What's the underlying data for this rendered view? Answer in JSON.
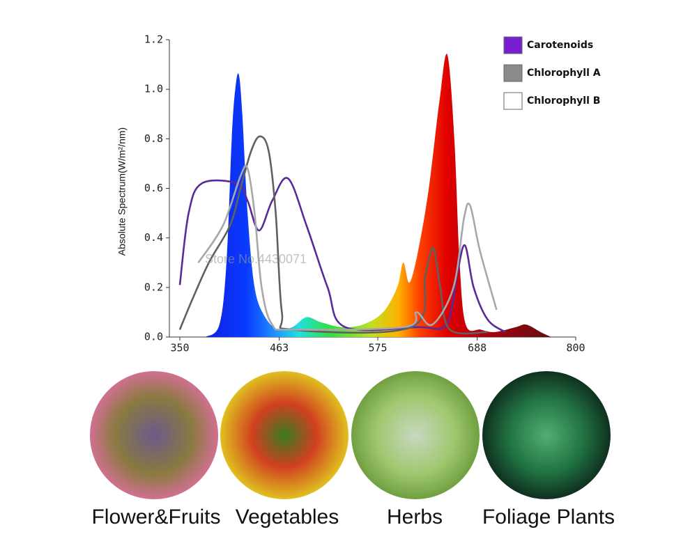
{
  "chart_data": {
    "type": "line",
    "y_label": "Absolute Spectrum(W/m²/nm)",
    "watermark": "Store No.4430071",
    "xlim": [
      350,
      800
    ],
    "xticks": [
      350,
      463,
      575,
      688,
      800
    ],
    "ylim": [
      0,
      1.2
    ],
    "yticks": [
      {
        "value": 0,
        "label": "0.0"
      },
      0.2,
      0.4,
      0.6,
      0.8,
      {
        "value": 1,
        "label": "1.0"
      },
      1.2
    ],
    "spectrum": {
      "x": [
        379,
        395,
        403,
        409,
        413,
        417,
        421,
        427,
        435,
        447,
        462,
        478,
        494,
        510,
        534,
        558,
        581,
        597,
        604,
        611,
        621,
        633,
        645,
        654,
        662,
        668,
        675,
        692,
        708,
        732,
        744,
        760,
        772
      ],
      "values": [
        0,
        0.05,
        0.3,
        0.8,
        1.0,
        1.06,
        0.9,
        0.5,
        0.2,
        0.08,
        0.03,
        0.04,
        0.08,
        0.06,
        0.04,
        0.05,
        0.1,
        0.2,
        0.3,
        0.22,
        0.35,
        0.6,
        0.95,
        1.14,
        0.8,
        0.3,
        0.05,
        0.03,
        0.02,
        0.04,
        0.05,
        0.02,
        0
      ]
    },
    "series": [
      {
        "name": "Carotenoids",
        "color": "#5a2a9a",
        "swatch": "#7a1fd0",
        "x": [
          350,
          360,
          375,
          415,
          427,
          440,
          455,
          473,
          494,
          518,
          538,
          621,
          653,
          665,
          674,
          684,
          700,
          720
        ],
        "values": [
          0.21,
          0.5,
          0.62,
          0.62,
          0.55,
          0.43,
          0.55,
          0.64,
          0.45,
          0.2,
          0.04,
          0.04,
          0.05,
          0.25,
          0.37,
          0.2,
          0.07,
          0.02
        ]
      },
      {
        "name": "Chlorophyll A",
        "color": "#606060",
        "swatch": "#8a8a8a",
        "x": [
          350,
          364,
          383,
          407,
          419,
          431,
          441,
          451,
          459,
          466,
          478,
          613,
          629,
          638,
          646,
          657,
          700
        ],
        "values": [
          0.03,
          0.15,
          0.3,
          0.45,
          0.6,
          0.75,
          0.81,
          0.75,
          0.5,
          0.1,
          0.03,
          0.04,
          0.25,
          0.36,
          0.2,
          0.03,
          0.02
        ]
      },
      {
        "name": "Chlorophyll B",
        "color": "#a8a8a8",
        "swatch": "#ffffff",
        "x": [
          371,
          399,
          419,
          427,
          435,
          443,
          455,
          478,
          605,
          619,
          637,
          661,
          673,
          680,
          691,
          710
        ],
        "values": [
          0.3,
          0.45,
          0.65,
          0.68,
          0.5,
          0.2,
          0.05,
          0.03,
          0.04,
          0.1,
          0.05,
          0.2,
          0.48,
          0.53,
          0.35,
          0.11
        ]
      }
    ]
  },
  "panels": [
    {
      "label": "Flower&Fruits"
    },
    {
      "label": "Vegetables"
    },
    {
      "label": "Herbs"
    },
    {
      "label": "Foliage Plants"
    }
  ]
}
